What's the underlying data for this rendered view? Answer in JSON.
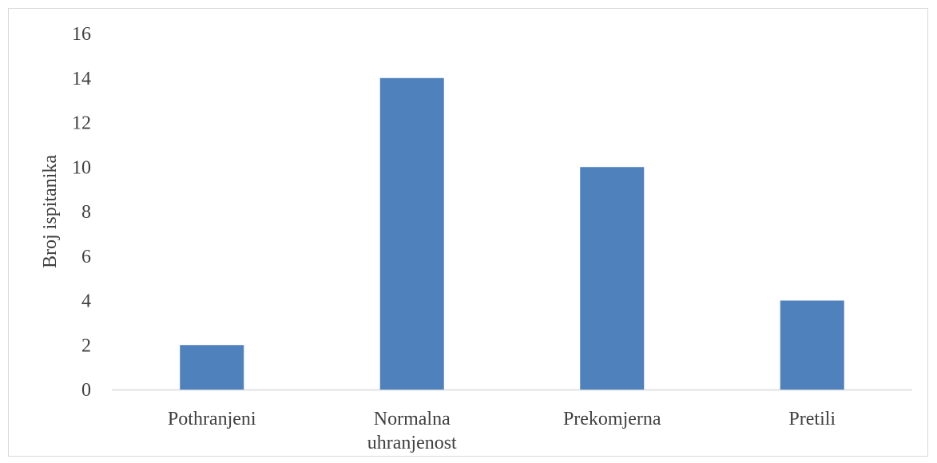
{
  "chart_data": {
    "type": "bar",
    "title": "",
    "xlabel": "",
    "ylabel": "Broj ispitanika",
    "categories": [
      [
        "Pothranjeni"
      ],
      [
        "Normalna",
        "uhranjenost"
      ],
      [
        "Prekomjerna"
      ],
      [
        "Pretili"
      ]
    ],
    "values": [
      2,
      14,
      10,
      4
    ],
    "ylim": [
      0,
      16
    ],
    "yticks": [
      0,
      2,
      4,
      6,
      8,
      10,
      12,
      14,
      16
    ],
    "grid": false,
    "bar_color": "#4f81bd",
    "axis_color": "#d9d9d9"
  }
}
